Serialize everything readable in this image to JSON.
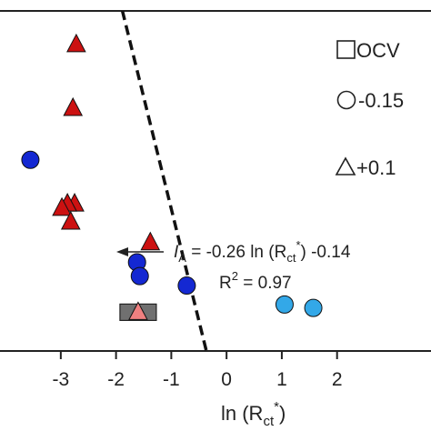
{
  "chart_data": {
    "type": "scatter",
    "title": "",
    "xlabel": "ln (R",
    "xlabel_sub": "ct",
    "xlabel_sup": "*",
    "xlabel_close": ")",
    "xlim": [
      -4.1,
      3.7
    ],
    "ylim": [
      -0.045,
      0.35
    ],
    "xticks": [
      -3,
      -2,
      -1,
      0,
      1,
      2
    ],
    "xtick_labels": [
      "-3",
      "-2",
      "-1",
      "0",
      "1",
      "2"
    ],
    "grid": false,
    "legend_position": "top-right",
    "legend": [
      {
        "marker": "square",
        "label": "OCV"
      },
      {
        "marker": "circle",
        "label": "-0.15"
      },
      {
        "marker": "triangle",
        "label": "+0.1"
      }
    ],
    "series": [
      {
        "marker": "square",
        "color": "#707070",
        "points": [
          {
            "x": -1.6,
            "y": 0.0
          }
        ]
      },
      {
        "marker": "triangle",
        "color": "#f08080",
        "points": [
          {
            "x": -1.6,
            "y": 0.0
          }
        ]
      },
      {
        "marker": "circle",
        "color": "#1428d2",
        "points": [
          {
            "x": -3.55,
            "y": 0.177
          },
          {
            "x": -1.62,
            "y": 0.058
          },
          {
            "x": -1.57,
            "y": 0.042
          },
          {
            "x": -0.72,
            "y": 0.031
          }
        ]
      },
      {
        "marker": "circle",
        "color": "#33a8e8",
        "points": [
          {
            "x": 1.05,
            "y": 0.009
          },
          {
            "x": 1.57,
            "y": 0.005
          }
        ]
      },
      {
        "marker": "triangle",
        "color": "#cc1111",
        "points": [
          {
            "x": -2.72,
            "y": 0.311
          },
          {
            "x": -2.78,
            "y": 0.237
          },
          {
            "x": -2.75,
            "y": 0.126
          },
          {
            "x": -2.88,
            "y": 0.126
          },
          {
            "x": -2.98,
            "y": 0.121
          },
          {
            "x": -2.82,
            "y": 0.105
          },
          {
            "x": -1.38,
            "y": 0.081
          }
        ]
      }
    ],
    "fit_line": {
      "style": "dashed",
      "slope": -0.26,
      "intercept": -0.14,
      "x_range": [
        -4.1,
        -0.3
      ]
    },
    "annotation": {
      "var": "I",
      "var_sub": "A",
      "eq_rest": " = -0.26 ln (R",
      "eq_sub": "ct",
      "eq_sup": "*",
      "eq_end": ") -0.14",
      "r2_base": "R",
      "r2_sup": "2",
      "r2_val": " =  0.97"
    }
  }
}
